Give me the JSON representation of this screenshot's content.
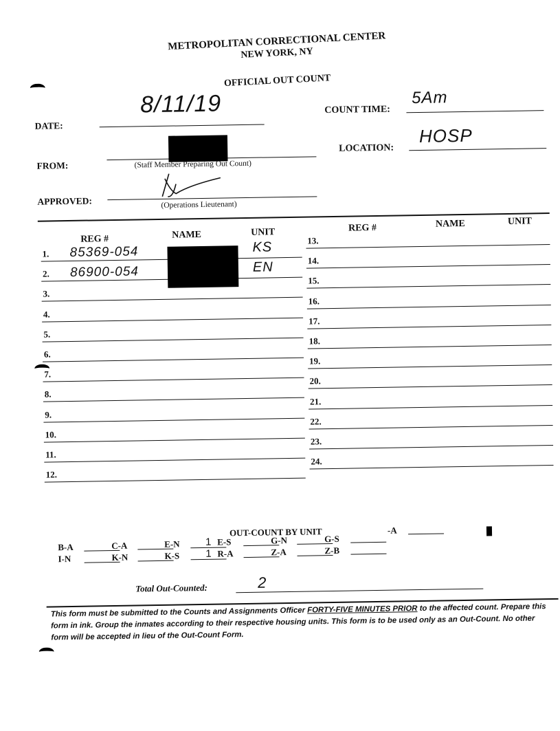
{
  "header": {
    "institution": "METROPOLITAN CORRECTIONAL CENTER",
    "city": "NEW YORK, NY",
    "form_title": "OFFICIAL OUT COUNT"
  },
  "fields": {
    "date_label": "DATE:",
    "date_value": "8/11/19",
    "count_time_label": "COUNT TIME:",
    "count_time_value": "5Am",
    "from_label": "FROM:",
    "from_caption": "(Staff Member Preparing Out Count)",
    "location_label": "LOCATION:",
    "location_value": "HOSP",
    "approved_label": "APPROVED:",
    "approved_caption": "(Operations Lieutenant)"
  },
  "table": {
    "headers": {
      "reg": "REG #",
      "name": "NAME",
      "unit": "UNIT"
    },
    "rows": [
      {
        "num": "1.",
        "reg": "85369-054",
        "unit": "KS",
        "redacted": true
      },
      {
        "num": "2.",
        "reg": "86900-054",
        "unit": "EN",
        "redacted": true
      },
      {
        "num": "3."
      },
      {
        "num": "4."
      },
      {
        "num": "5."
      },
      {
        "num": "6."
      },
      {
        "num": "7."
      },
      {
        "num": "8."
      },
      {
        "num": "9."
      },
      {
        "num": "10."
      },
      {
        "num": "11."
      },
      {
        "num": "12."
      },
      {
        "num": "13."
      },
      {
        "num": "14."
      },
      {
        "num": "15."
      },
      {
        "num": "16."
      },
      {
        "num": "17."
      },
      {
        "num": "18."
      },
      {
        "num": "19."
      },
      {
        "num": "20."
      },
      {
        "num": "21."
      },
      {
        "num": "22."
      },
      {
        "num": "23."
      },
      {
        "num": "24."
      }
    ]
  },
  "out_count": {
    "title": "OUT-COUNT BY UNIT",
    "units": [
      {
        "label": "B-A",
        "value": ""
      },
      {
        "label": "C-A",
        "value": ""
      },
      {
        "label": "E-N",
        "value": "1"
      },
      {
        "label": "E-S",
        "value": ""
      },
      {
        "label": "G-N",
        "value": ""
      },
      {
        "label": "G-S",
        "value": ""
      },
      {
        "label": "-A",
        "value": "",
        "redacted_prefix": true
      },
      {
        "label": "I-N",
        "value": ""
      },
      {
        "label": "K-N",
        "value": ""
      },
      {
        "label": "K-S",
        "value": "1"
      },
      {
        "label": "R-A",
        "value": ""
      },
      {
        "label": "Z-A",
        "value": ""
      },
      {
        "label": "Z-B",
        "value": ""
      }
    ],
    "total_label": "Total Out-Counted:",
    "total_value": "2"
  },
  "footer": {
    "part1": "This form must be submitted to the Counts and Assignments Officer ",
    "emphasis": "FORTY-FIVE MINUTES PRIOR",
    "part2": " to the affected count. Prepare this form in ink. Group the inmates according to their respective housing units. This form is to be used only as an Out-Count. No other form will be accepted in lieu of the Out-Count Form."
  }
}
